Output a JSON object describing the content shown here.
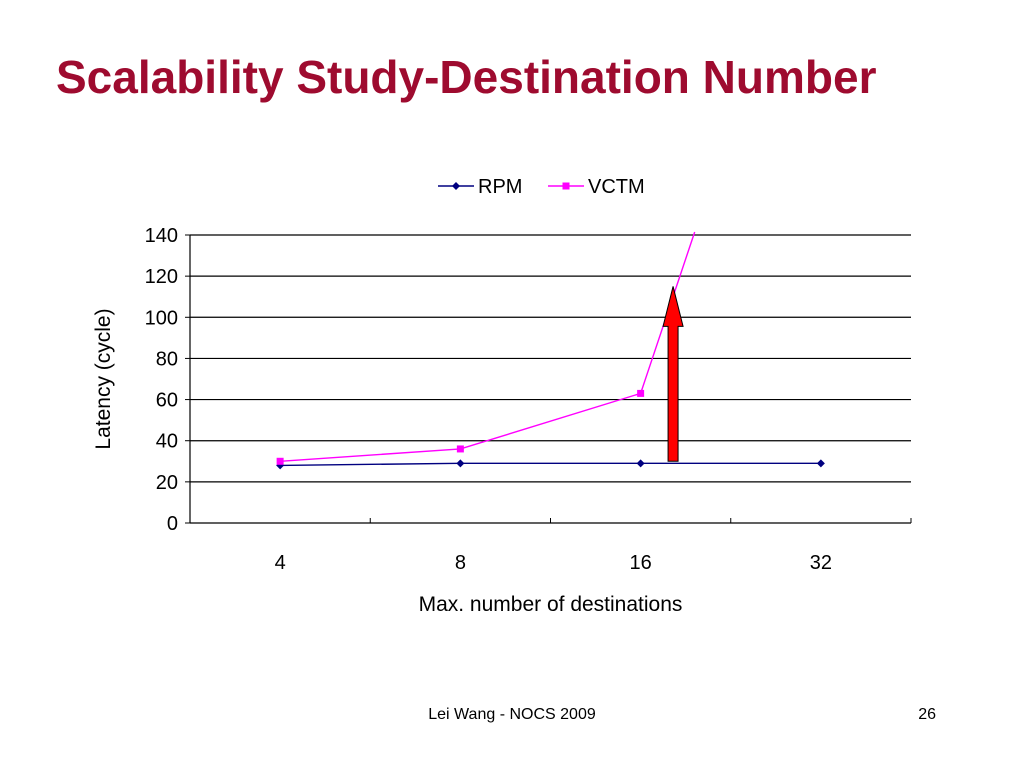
{
  "slide": {
    "title": "Scalability Study-Destination Number",
    "footer": "Lei Wang - NOCS 2009",
    "page_number": "26"
  },
  "colors": {
    "title": "#9E0B2F",
    "rpm": "#000080",
    "vctm": "#FF00FF",
    "arrow": "#FF0000"
  },
  "chart_data": {
    "type": "line",
    "categories": [
      "4",
      "8",
      "16",
      "32"
    ],
    "xlabel": "Max. number of destinations",
    "ylabel": "Latency (cycle)",
    "ylim": [
      0,
      140
    ],
    "yticks": [
      0,
      20,
      40,
      60,
      80,
      100,
      120,
      140
    ],
    "grid": "horizontal",
    "legend": "top-center",
    "series": [
      {
        "name": "RPM",
        "marker": "diamond",
        "values": [
          28,
          29,
          29,
          29
        ]
      },
      {
        "name": "VCTM",
        "marker": "square",
        "values": [
          30,
          36,
          63,
          null
        ],
        "extends_beyond_top": true
      }
    ],
    "annotations": [
      {
        "type": "arrow",
        "direction": "up",
        "x_between": [
          "16",
          "32"
        ],
        "from": 30,
        "to": 115,
        "color": "#FF0000"
      }
    ]
  }
}
